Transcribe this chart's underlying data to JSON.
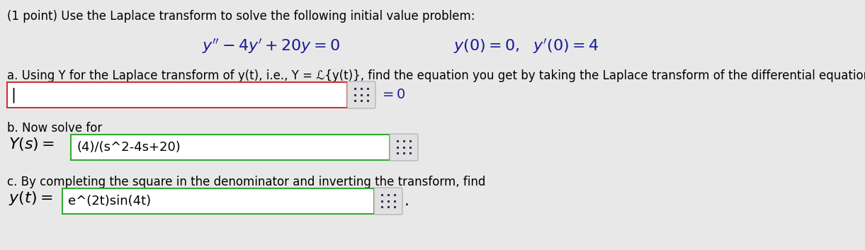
{
  "bg_color": "#e8e8e8",
  "white": "#ffffff",
  "grid_btn_color": "#d8d8d8",
  "title_text": "(1 point) Use the Laplace transform to solve the following initial value problem:",
  "part_a_text": "a. Using Y for the Laplace transform of y(t), i.e., Y = ℒ{y(t)}, find the equation you get by taking the Laplace transform of the differential equation",
  "part_b_text": "b. Now solve for",
  "Ys_label": "$Y(s) =$",
  "Ys_value": "(4)/(s^2-4s+20)",
  "part_c_text": "c. By completing the square in the denominator and inverting the transform, find",
  "yt_label": "$y(t) =$",
  "yt_value": "e^(2t)sin(4t)",
  "input_box_a_color": "#cc3333",
  "input_box_bc_color": "#33aa33",
  "math_color": "#1a1a99",
  "font_size_title": 12,
  "font_size_part": 12,
  "font_size_math": 14,
  "font_size_answer": 12
}
